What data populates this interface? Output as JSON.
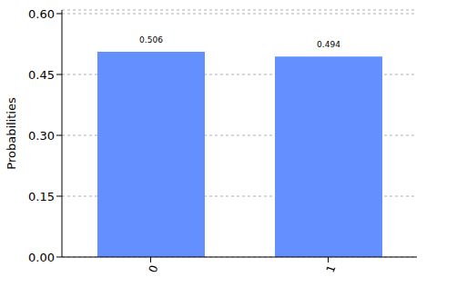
{
  "chart_data": {
    "type": "bar",
    "categories": [
      "0",
      "1"
    ],
    "values": [
      0.506,
      0.494
    ],
    "color": "#648fff",
    "y_label": "Probabilities",
    "ylim": [
      0,
      0.609
    ],
    "yticks": [
      {
        "value": 0,
        "label": "0.00"
      },
      0.15,
      {
        "value": 0.3,
        "label": "0.30"
      },
      0.45,
      {
        "value": 0.6,
        "label": "0.60"
      }
    ],
    "grid": true,
    "data_labels": true
  }
}
